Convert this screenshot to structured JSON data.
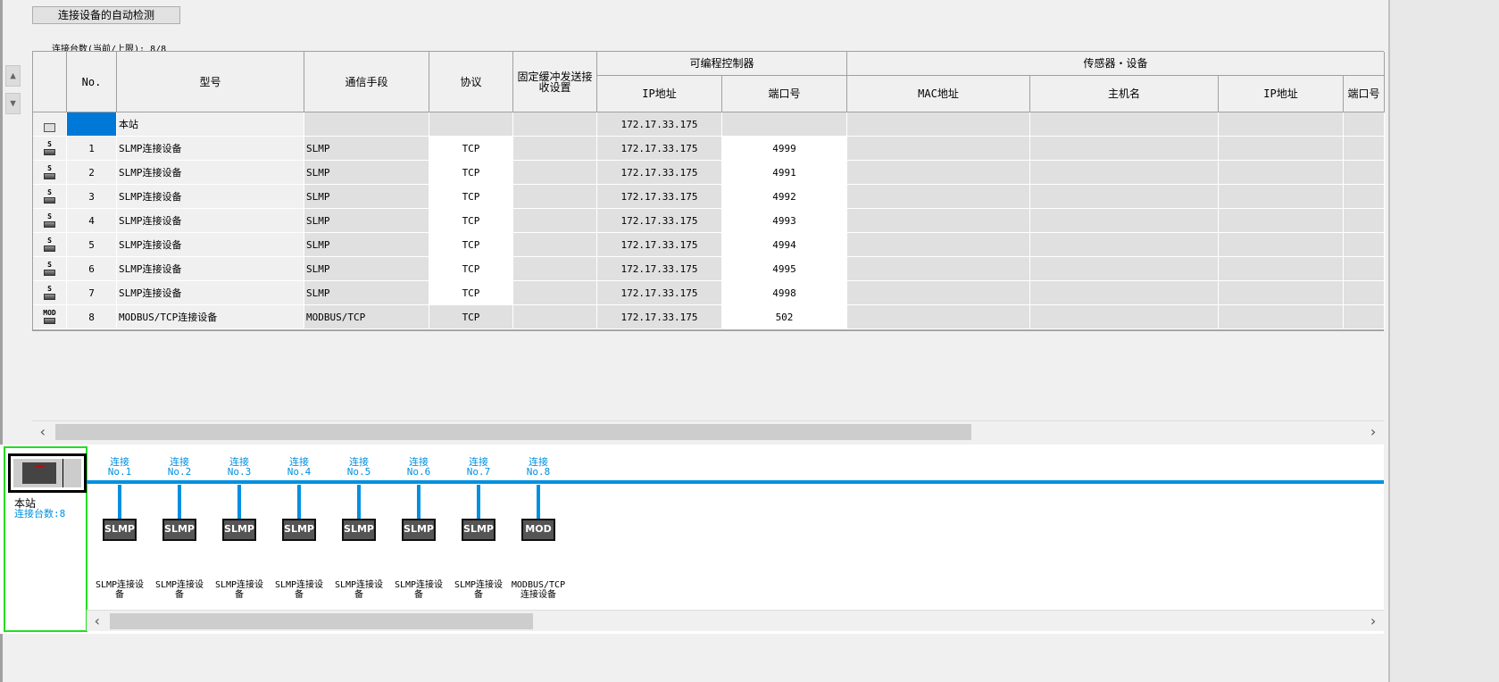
{
  "toolbar": {
    "auto_detect_label": "连接设备的自动检测",
    "count_label": "连接台数(当前/上限):",
    "count_value": "8/8"
  },
  "table": {
    "headers": {
      "no": "No.",
      "model": "型号",
      "comm": "通信手段",
      "protocol": "协议",
      "fixed_buffer": "固定缓冲发送接收设置",
      "plc_group": "可编程控制器",
      "plc_ip": "IP地址",
      "plc_port": "端口号",
      "sensor_group": "传感器・设备",
      "mac": "MAC地址",
      "host": "主机名",
      "sensor_ip": "IP地址",
      "sensor_port": "端口号"
    },
    "own_station": {
      "model": "本站",
      "plc_ip": "172.17.33.175"
    },
    "rows": [
      {
        "icon": "S",
        "no": "1",
        "model": "SLMP连接设备",
        "comm": "SLMP",
        "protocol": "TCP",
        "plc_ip": "172.17.33.175",
        "port": "4999"
      },
      {
        "icon": "S",
        "no": "2",
        "model": "SLMP连接设备",
        "comm": "SLMP",
        "protocol": "TCP",
        "plc_ip": "172.17.33.175",
        "port": "4991"
      },
      {
        "icon": "S",
        "no": "3",
        "model": "SLMP连接设备",
        "comm": "SLMP",
        "protocol": "TCP",
        "plc_ip": "172.17.33.175",
        "port": "4992"
      },
      {
        "icon": "S",
        "no": "4",
        "model": "SLMP连接设备",
        "comm": "SLMP",
        "protocol": "TCP",
        "plc_ip": "172.17.33.175",
        "port": "4993"
      },
      {
        "icon": "S",
        "no": "5",
        "model": "SLMP连接设备",
        "comm": "SLMP",
        "protocol": "TCP",
        "plc_ip": "172.17.33.175",
        "port": "4994"
      },
      {
        "icon": "S",
        "no": "6",
        "model": "SLMP连接设备",
        "comm": "SLMP",
        "protocol": "TCP",
        "plc_ip": "172.17.33.175",
        "port": "4995"
      },
      {
        "icon": "S",
        "no": "7",
        "model": "SLMP连接设备",
        "comm": "SLMP",
        "protocol": "TCP",
        "plc_ip": "172.17.33.175",
        "port": "4998"
      },
      {
        "icon": "MOD",
        "no": "8",
        "model": "MODBUS/TCP连接设备",
        "comm": "MODBUS/TCP",
        "protocol": "TCP",
        "plc_ip": "172.17.33.175",
        "port": "502"
      }
    ]
  },
  "diagram": {
    "own_station_label": "本站",
    "connected_count": "连接台数:8",
    "nodes": [
      {
        "conn": "连接",
        "no": "No.1",
        "box": "SLMP",
        "name": "SLMP连接设备"
      },
      {
        "conn": "连接",
        "no": "No.2",
        "box": "SLMP",
        "name": "SLMP连接设备"
      },
      {
        "conn": "连接",
        "no": "No.3",
        "box": "SLMP",
        "name": "SLMP连接设备"
      },
      {
        "conn": "连接",
        "no": "No.4",
        "box": "SLMP",
        "name": "SLMP连接设备"
      },
      {
        "conn": "连接",
        "no": "No.5",
        "box": "SLMP",
        "name": "SLMP连接设备"
      },
      {
        "conn": "连接",
        "no": "No.6",
        "box": "SLMP",
        "name": "SLMP连接设备"
      },
      {
        "conn": "连接",
        "no": "No.7",
        "box": "SLMP",
        "name": "SLMP连接设备"
      },
      {
        "conn": "连接",
        "no": "No.8",
        "box": "MOD",
        "name": "MODBUS/TCP连接设备"
      }
    ]
  },
  "colors": {
    "accent": "#0090e0",
    "selection": "#0078d7",
    "highlight_border": "#22dd22"
  }
}
